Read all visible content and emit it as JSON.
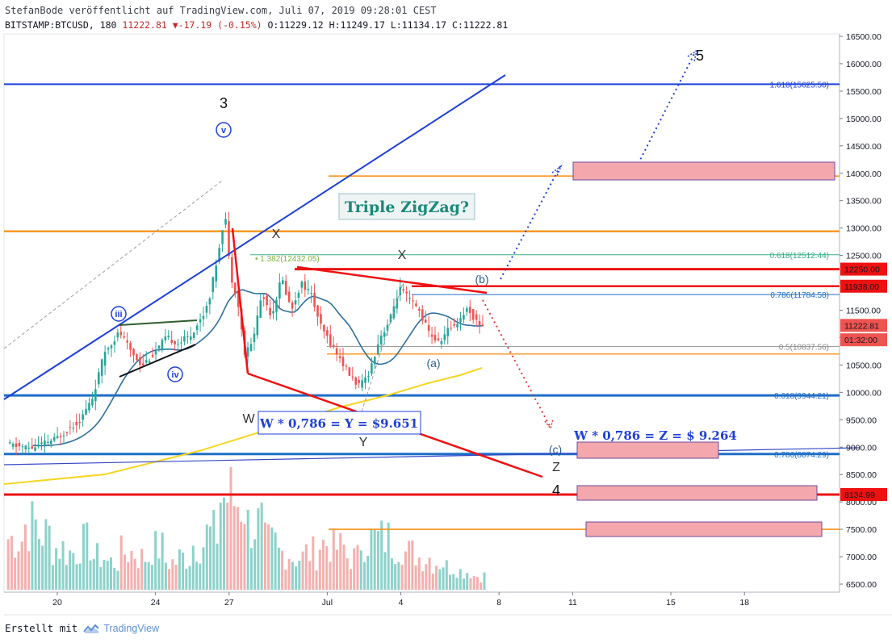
{
  "header": {
    "line1": "StefanBode veröffentlicht auf TradingView.com, Juli 07, 2019 09:28:01 CEST",
    "symbol": "BITSTAMP:BTCUSD, 180",
    "last": "11222.81",
    "change": "-17.19 (-0.15%)",
    "open": "O:11229.12",
    "high": "H:11249.17",
    "low": "L:11134.17",
    "close": "C:11222.81"
  },
  "footer": {
    "created_with": "Erstellt mit",
    "brand": "TradingView"
  },
  "colors": {
    "up": "#26a69a",
    "down": "#ef5350",
    "blue": "#1e40d8",
    "orange": "#f7931a",
    "red": "#ee1111",
    "green": "#3aae84"
  },
  "chart_data": {
    "type": "candlestick",
    "symbol": "BITSTAMP:BTCUSD",
    "timeframe": "180",
    "ylim": [
      6400,
      16700
    ],
    "y_ticks": [
      6500,
      7000,
      7500,
      8000,
      8500,
      9000,
      9500,
      10000,
      10500,
      11000,
      11500,
      12000,
      12500,
      13000,
      13500,
      14000,
      14500,
      15000,
      15500,
      16000,
      16500
    ],
    "y_tick_labels": [
      "6500.00",
      "7000.00",
      "7500.00",
      "8000.00",
      "8500.00",
      "9000.00",
      "9500.00",
      "10000.00",
      "10500.00",
      "11000.00",
      "11500.00",
      "12000.00",
      "12500.00",
      "13000.00",
      "13500.00",
      "14000.00",
      "14500.00",
      "15000.00",
      "15500.00",
      "16000.00",
      "16500.00"
    ],
    "x_ticks": [
      {
        "label": "20",
        "day": 0
      },
      {
        "label": "24",
        "day": 4
      },
      {
        "label": "27",
        "day": 7
      },
      {
        "label": "Jul",
        "day": 11
      },
      {
        "label": "4",
        "day": 14
      },
      {
        "label": "8",
        "day": 18
      },
      {
        "label": "11",
        "day": 21
      },
      {
        "label": "15",
        "day": 25
      },
      {
        "label": "18",
        "day": 28
      }
    ],
    "price_path": [
      {
        "day": -2.0,
        "price": 9050
      },
      {
        "day": -1.0,
        "price": 8980
      },
      {
        "day": 0.0,
        "price": 9150
      },
      {
        "day": 1.0,
        "price": 9500
      },
      {
        "day": 1.5,
        "price": 9900
      },
      {
        "day": 2.0,
        "price": 10750
      },
      {
        "day": 2.6,
        "price": 11100
      },
      {
        "day": 3.0,
        "price": 10800
      },
      {
        "day": 3.5,
        "price": 10500
      },
      {
        "day": 4.0,
        "price": 10700
      },
      {
        "day": 4.5,
        "price": 11000
      },
      {
        "day": 5.0,
        "price": 10900
      },
      {
        "day": 5.5,
        "price": 11050
      },
      {
        "day": 6.0,
        "price": 11400
      },
      {
        "day": 6.3,
        "price": 11800
      },
      {
        "day": 6.6,
        "price": 12500
      },
      {
        "day": 6.9,
        "price": 13300
      },
      {
        "day": 7.1,
        "price": 12200
      },
      {
        "day": 7.4,
        "price": 11700
      },
      {
        "day": 7.7,
        "price": 10700
      },
      {
        "day": 8.0,
        "price": 10900
      },
      {
        "day": 8.4,
        "price": 11800
      },
      {
        "day": 8.8,
        "price": 11400
      },
      {
        "day": 9.2,
        "price": 12100
      },
      {
        "day": 9.6,
        "price": 11500
      },
      {
        "day": 10.0,
        "price": 12000
      },
      {
        "day": 10.4,
        "price": 11800
      },
      {
        "day": 10.8,
        "price": 11200
      },
      {
        "day": 11.2,
        "price": 10900
      },
      {
        "day": 11.6,
        "price": 10600
      },
      {
        "day": 12.0,
        "price": 10300
      },
      {
        "day": 12.4,
        "price": 10100
      },
      {
        "day": 12.8,
        "price": 10400
      },
      {
        "day": 13.2,
        "price": 11000
      },
      {
        "day": 13.6,
        "price": 11300
      },
      {
        "day": 14.0,
        "price": 11900
      },
      {
        "day": 14.4,
        "price": 11700
      },
      {
        "day": 14.8,
        "price": 11500
      },
      {
        "day": 15.2,
        "price": 11100
      },
      {
        "day": 15.6,
        "price": 10900
      },
      {
        "day": 16.0,
        "price": 11150
      },
      {
        "day": 16.4,
        "price": 11300
      },
      {
        "day": 16.8,
        "price": 11550
      },
      {
        "day": 17.1,
        "price": 11300
      },
      {
        "day": 17.4,
        "price": 11222
      }
    ],
    "volume_relative": [
      0.55,
      0.7,
      0.6,
      0.45,
      0.4,
      0.5,
      0.35,
      0.3,
      0.4,
      0.35,
      0.45,
      0.3,
      0.35,
      0.5,
      0.6,
      1.0,
      0.95,
      0.7,
      0.5,
      0.4,
      0.35,
      0.4,
      0.5,
      0.45,
      0.35,
      0.55,
      0.55,
      0.5,
      0.4,
      0.35,
      0.3,
      0.25,
      0.2,
      0.15
    ],
    "fib_levels": [
      {
        "label": "1.618(15625.50)",
        "price": 15625.5,
        "color": "#1e40d8"
      },
      {
        "label": "0.618(12512.44)",
        "price": 12512.44,
        "color": "#3aae84"
      },
      {
        "label": "0.786(11784.58)",
        "price": 11784.58,
        "color": "#1e6ec8"
      },
      {
        "label": "0.5(10837.56)",
        "price": 10837.56,
        "color": "#888888"
      },
      {
        "label": "0.618(9944.21)",
        "price": 9944.21,
        "color": "#1e6ec8"
      },
      {
        "label": "0.786(8874.29)",
        "price": 8874.29,
        "color": "#1e6ec8"
      }
    ],
    "ext_label": "1.382(12432.05)",
    "price_tags": [
      {
        "label": "12250.00",
        "price": 12250,
        "color": "#ee1111"
      },
      {
        "label": "11938.00",
        "price": 11938,
        "color": "#ee1111"
      },
      {
        "label": "11222.81",
        "price": 11222.81,
        "color": "#ef5350"
      },
      {
        "label": "01:32:00",
        "price": 10960,
        "color": "#ef5350"
      },
      {
        "label": "8134.99",
        "price": 8134.99,
        "color": "#ee1111"
      }
    ],
    "wave_labels": {
      "wave3": "3",
      "wave5": "5",
      "wave4": "4",
      "v": "v",
      "iii": "iii",
      "iv": "iv",
      "x1": "X",
      "x2": "X",
      "w": "W",
      "y": "Y",
      "z": "Z",
      "a": "(a)",
      "b": "(b)",
      "c": "(c)"
    },
    "annotations": {
      "title_box": "Triple ZigZag?",
      "wy": "W * 0,786 = Y = $9.651",
      "wz": "W * 0,786 = Z = $ 9.264"
    }
  }
}
